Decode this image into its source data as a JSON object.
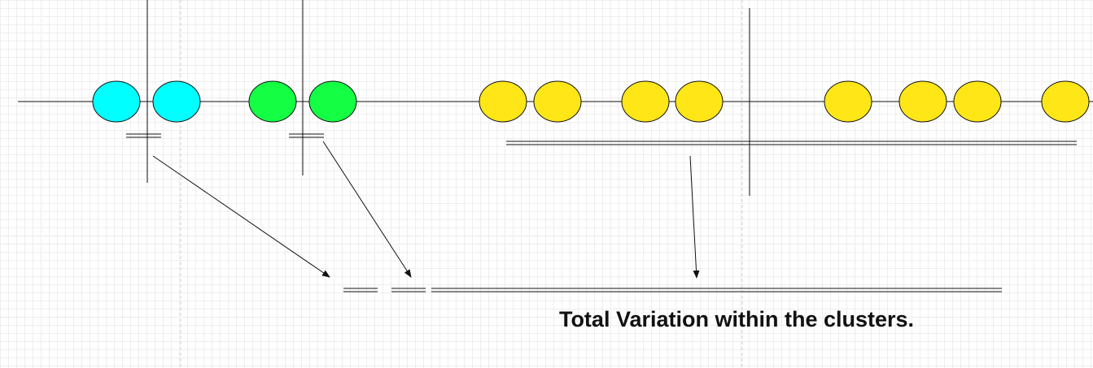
{
  "caption": "Total Variation within the clusters.",
  "clusters": [
    {
      "name": "cyan-cluster",
      "color": "#00ffff",
      "points": 2
    },
    {
      "name": "green-cluster",
      "color": "#14ff44",
      "points": 2
    },
    {
      "name": "yellow-cluster",
      "color": "#ffe617",
      "points": 8
    }
  ],
  "colors": {
    "stroke": "#111111",
    "grid_major": "#d6d6d6",
    "grid_minor": "#eeeeee"
  }
}
